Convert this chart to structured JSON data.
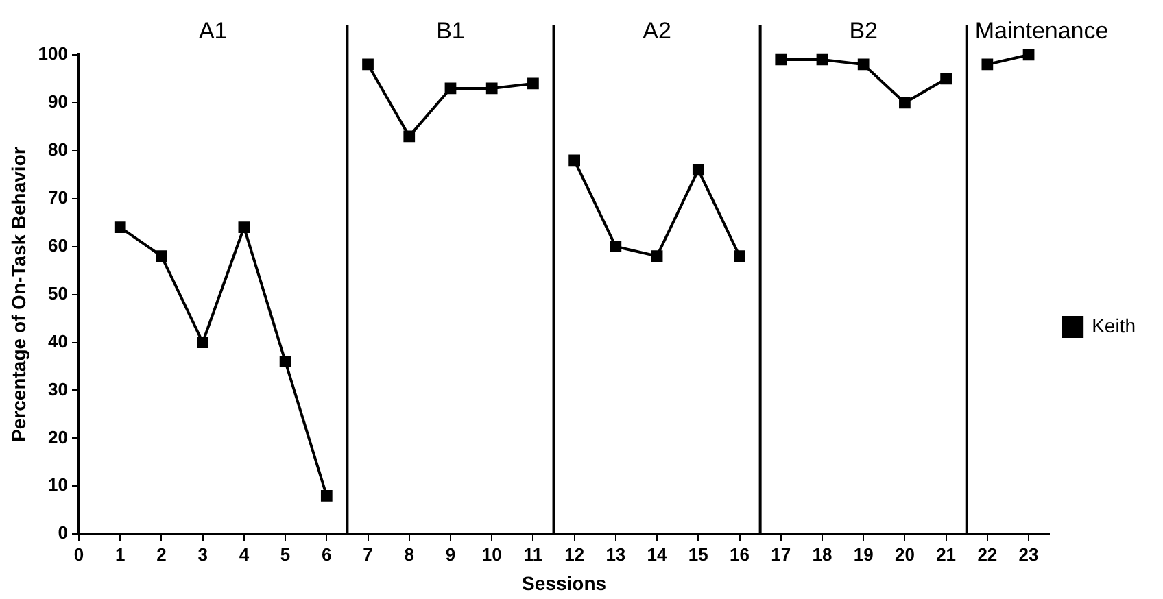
{
  "chart_data": {
    "type": "line",
    "xlabel": "Sessions",
    "ylabel": "Percentage of On-Task Behavior",
    "x": [
      1,
      2,
      3,
      4,
      5,
      6,
      7,
      8,
      9,
      10,
      11,
      12,
      13,
      14,
      15,
      16,
      17,
      18,
      19,
      20,
      21,
      22,
      23
    ],
    "series": [
      {
        "name": "Keith",
        "color": "#000000",
        "values": [
          64,
          58,
          40,
          64,
          36,
          8,
          98,
          83,
          93,
          93,
          94,
          78,
          60,
          58,
          76,
          58,
          99,
          99,
          98,
          90,
          95,
          98,
          100
        ]
      }
    ],
    "xlim": [
      0,
      23.5
    ],
    "xticks": [
      0,
      1,
      2,
      3,
      4,
      5,
      6,
      7,
      8,
      9,
      10,
      11,
      12,
      13,
      14,
      15,
      16,
      17,
      18,
      19,
      20,
      21,
      22,
      23
    ],
    "ylim": [
      0,
      100
    ],
    "yticks": [
      0,
      10,
      20,
      30,
      40,
      50,
      60,
      70,
      80,
      90,
      100
    ],
    "ref_lines": [
      {
        "axis": "x",
        "value": 6.5,
        "color": "#000000"
      },
      {
        "axis": "x",
        "value": 11.5,
        "color": "#000000"
      },
      {
        "axis": "x",
        "value": 16.5,
        "color": "#000000"
      },
      {
        "axis": "x",
        "value": 21.5,
        "color": "#000000"
      }
    ],
    "annotations": [
      "A1",
      "B1",
      "A2",
      "B2",
      "Maintenance"
    ],
    "grid": false,
    "legend": "right",
    "marker": "square",
    "line_style": "solid"
  }
}
